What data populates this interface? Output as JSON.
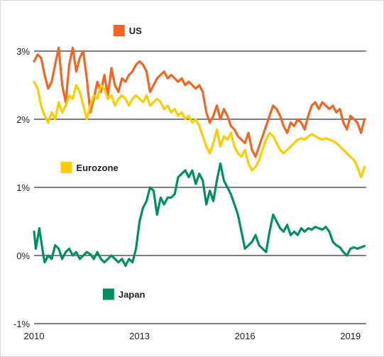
{
  "chart_data": {
    "type": "line",
    "xlim": [
      2010.0,
      2019.45
    ],
    "ylim": [
      -1,
      3
    ],
    "y_ticks": [
      {
        "value": 3,
        "label": "3%"
      },
      {
        "value": 2,
        "label": "2%"
      },
      {
        "value": 1,
        "label": "1%"
      },
      {
        "value": 0,
        "label": "0%"
      },
      {
        "value": -1,
        "label": "-1%"
      }
    ],
    "x_ticks": [
      {
        "value": 2010,
        "label": "2010"
      },
      {
        "value": 2013,
        "label": "2013"
      },
      {
        "value": 2016,
        "label": "2016"
      },
      {
        "value": 2019,
        "label": "2019"
      }
    ],
    "grid": "horizontal",
    "legend": "inline",
    "series": [
      {
        "name": "US",
        "color": "#f26522",
        "label_pos": {
          "x": 2012.7,
          "y": 3.25
        },
        "points": [
          [
            2010.0,
            2.85
          ],
          [
            2010.1,
            2.95
          ],
          [
            2010.2,
            2.9
          ],
          [
            2010.3,
            2.65
          ],
          [
            2010.4,
            2.45
          ],
          [
            2010.5,
            2.55
          ],
          [
            2010.6,
            2.8
          ],
          [
            2010.7,
            3.05
          ],
          [
            2010.8,
            2.5
          ],
          [
            2010.9,
            2.25
          ],
          [
            2011.0,
            2.8
          ],
          [
            2011.1,
            3.05
          ],
          [
            2011.2,
            2.7
          ],
          [
            2011.3,
            2.9
          ],
          [
            2011.4,
            3.0
          ],
          [
            2011.5,
            2.6
          ],
          [
            2011.6,
            2.1
          ],
          [
            2011.7,
            2.3
          ],
          [
            2011.8,
            2.55
          ],
          [
            2011.9,
            2.4
          ],
          [
            2012.0,
            2.65
          ],
          [
            2012.1,
            2.35
          ],
          [
            2012.2,
            2.75
          ],
          [
            2012.3,
            2.5
          ],
          [
            2012.4,
            2.4
          ],
          [
            2012.5,
            2.6
          ],
          [
            2012.6,
            2.55
          ],
          [
            2012.7,
            2.65
          ],
          [
            2012.8,
            2.7
          ],
          [
            2012.9,
            2.8
          ],
          [
            2013.0,
            2.85
          ],
          [
            2013.1,
            2.8
          ],
          [
            2013.2,
            2.7
          ],
          [
            2013.3,
            2.4
          ],
          [
            2013.4,
            2.5
          ],
          [
            2013.5,
            2.6
          ],
          [
            2013.6,
            2.65
          ],
          [
            2013.7,
            2.7
          ],
          [
            2013.8,
            2.6
          ],
          [
            2013.9,
            2.65
          ],
          [
            2014.0,
            2.6
          ],
          [
            2014.1,
            2.55
          ],
          [
            2014.2,
            2.6
          ],
          [
            2014.3,
            2.5
          ],
          [
            2014.4,
            2.55
          ],
          [
            2014.5,
            2.5
          ],
          [
            2014.6,
            2.45
          ],
          [
            2014.7,
            2.5
          ],
          [
            2014.8,
            2.4
          ],
          [
            2014.9,
            2.1
          ],
          [
            2015.0,
            1.95
          ],
          [
            2015.1,
            2.05
          ],
          [
            2015.2,
            2.2
          ],
          [
            2015.3,
            2.0
          ],
          [
            2015.4,
            2.15
          ],
          [
            2015.5,
            2.05
          ],
          [
            2015.6,
            1.9
          ],
          [
            2015.7,
            1.85
          ],
          [
            2015.8,
            1.75
          ],
          [
            2015.9,
            1.7
          ],
          [
            2016.0,
            1.65
          ],
          [
            2016.1,
            1.8
          ],
          [
            2016.2,
            1.55
          ],
          [
            2016.3,
            1.45
          ],
          [
            2016.4,
            1.6
          ],
          [
            2016.5,
            1.75
          ],
          [
            2016.6,
            1.9
          ],
          [
            2016.7,
            2.05
          ],
          [
            2016.8,
            2.2
          ],
          [
            2016.9,
            2.15
          ],
          [
            2017.0,
            2.05
          ],
          [
            2017.1,
            1.9
          ],
          [
            2017.2,
            1.8
          ],
          [
            2017.3,
            1.95
          ],
          [
            2017.4,
            1.9
          ],
          [
            2017.5,
            2.0
          ],
          [
            2017.6,
            1.95
          ],
          [
            2017.7,
            1.85
          ],
          [
            2017.8,
            2.05
          ],
          [
            2017.9,
            2.2
          ],
          [
            2018.0,
            2.25
          ],
          [
            2018.1,
            2.15
          ],
          [
            2018.2,
            2.25
          ],
          [
            2018.3,
            2.2
          ],
          [
            2018.4,
            2.15
          ],
          [
            2018.5,
            2.2
          ],
          [
            2018.6,
            2.1
          ],
          [
            2018.7,
            2.15
          ],
          [
            2018.8,
            1.95
          ],
          [
            2018.9,
            1.85
          ],
          [
            2019.0,
            2.05
          ],
          [
            2019.1,
            2.0
          ],
          [
            2019.2,
            1.95
          ],
          [
            2019.3,
            1.8
          ],
          [
            2019.4,
            2.0
          ]
        ]
      },
      {
        "name": "Eurozone",
        "color": "#ffcc00",
        "label_pos": {
          "x": 2011.2,
          "y": 1.24
        },
        "points": [
          [
            2010.0,
            2.55
          ],
          [
            2010.1,
            2.45
          ],
          [
            2010.2,
            2.2
          ],
          [
            2010.3,
            2.05
          ],
          [
            2010.4,
            1.95
          ],
          [
            2010.5,
            2.1
          ],
          [
            2010.6,
            2.0
          ],
          [
            2010.7,
            2.25
          ],
          [
            2010.8,
            2.1
          ],
          [
            2010.9,
            2.2
          ],
          [
            2011.0,
            2.35
          ],
          [
            2011.1,
            2.3
          ],
          [
            2011.2,
            2.5
          ],
          [
            2011.3,
            2.4
          ],
          [
            2011.4,
            2.2
          ],
          [
            2011.5,
            2.0
          ],
          [
            2011.6,
            2.2
          ],
          [
            2011.7,
            2.35
          ],
          [
            2011.8,
            2.3
          ],
          [
            2011.9,
            2.5
          ],
          [
            2012.0,
            2.45
          ],
          [
            2012.1,
            2.3
          ],
          [
            2012.2,
            2.35
          ],
          [
            2012.3,
            2.2
          ],
          [
            2012.4,
            2.3
          ],
          [
            2012.5,
            2.35
          ],
          [
            2012.6,
            2.3
          ],
          [
            2012.7,
            2.2
          ],
          [
            2012.8,
            2.3
          ],
          [
            2012.9,
            2.35
          ],
          [
            2013.0,
            2.3
          ],
          [
            2013.1,
            2.25
          ],
          [
            2013.2,
            2.35
          ],
          [
            2013.3,
            2.2
          ],
          [
            2013.4,
            2.25
          ],
          [
            2013.5,
            2.3
          ],
          [
            2013.6,
            2.25
          ],
          [
            2013.7,
            2.15
          ],
          [
            2013.8,
            2.2
          ],
          [
            2013.9,
            2.1
          ],
          [
            2014.0,
            2.15
          ],
          [
            2014.1,
            2.05
          ],
          [
            2014.2,
            2.1
          ],
          [
            2014.3,
            2.0
          ],
          [
            2014.4,
            2.05
          ],
          [
            2014.5,
            1.95
          ],
          [
            2014.6,
            2.0
          ],
          [
            2014.7,
            1.9
          ],
          [
            2014.8,
            1.75
          ],
          [
            2014.9,
            1.6
          ],
          [
            2015.0,
            1.5
          ],
          [
            2015.1,
            1.65
          ],
          [
            2015.2,
            1.85
          ],
          [
            2015.3,
            1.6
          ],
          [
            2015.4,
            1.75
          ],
          [
            2015.5,
            1.7
          ],
          [
            2015.6,
            1.8
          ],
          [
            2015.7,
            1.6
          ],
          [
            2015.8,
            1.5
          ],
          [
            2015.9,
            1.45
          ],
          [
            2016.0,
            1.55
          ],
          [
            2016.1,
            1.35
          ],
          [
            2016.2,
            1.25
          ],
          [
            2016.3,
            1.3
          ],
          [
            2016.4,
            1.4
          ],
          [
            2016.5,
            1.55
          ],
          [
            2016.6,
            1.7
          ],
          [
            2016.7,
            1.8
          ],
          [
            2016.8,
            1.75
          ],
          [
            2016.9,
            1.65
          ],
          [
            2017.0,
            1.55
          ],
          [
            2017.1,
            1.5
          ],
          [
            2017.2,
            1.55
          ],
          [
            2017.3,
            1.6
          ],
          [
            2017.4,
            1.65
          ],
          [
            2017.5,
            1.7
          ],
          [
            2017.6,
            1.72
          ],
          [
            2017.7,
            1.7
          ],
          [
            2017.8,
            1.75
          ],
          [
            2017.9,
            1.78
          ],
          [
            2018.0,
            1.75
          ],
          [
            2018.1,
            1.72
          ],
          [
            2018.2,
            1.7
          ],
          [
            2018.3,
            1.72
          ],
          [
            2018.4,
            1.7
          ],
          [
            2018.5,
            1.68
          ],
          [
            2018.6,
            1.65
          ],
          [
            2018.7,
            1.6
          ],
          [
            2018.8,
            1.55
          ],
          [
            2018.9,
            1.5
          ],
          [
            2019.0,
            1.45
          ],
          [
            2019.1,
            1.4
          ],
          [
            2019.2,
            1.3
          ],
          [
            2019.3,
            1.15
          ],
          [
            2019.4,
            1.3
          ]
        ]
      },
      {
        "name": "Japan",
        "color": "#009060",
        "label_pos": {
          "x": 2012.4,
          "y": -0.62
        },
        "points": [
          [
            2010.0,
            0.35
          ],
          [
            2010.05,
            0.1
          ],
          [
            2010.15,
            0.4
          ],
          [
            2010.25,
            0.05
          ],
          [
            2010.3,
            -0.1
          ],
          [
            2010.4,
            0.0
          ],
          [
            2010.5,
            -0.05
          ],
          [
            2010.6,
            0.15
          ],
          [
            2010.7,
            0.1
          ],
          [
            2010.8,
            -0.05
          ],
          [
            2010.9,
            0.05
          ],
          [
            2011.0,
            0.1
          ],
          [
            2011.1,
            0.0
          ],
          [
            2011.2,
            0.05
          ],
          [
            2011.3,
            -0.05
          ],
          [
            2011.4,
            0.0
          ],
          [
            2011.5,
            0.05
          ],
          [
            2011.6,
            0.02
          ],
          [
            2011.7,
            -0.05
          ],
          [
            2011.8,
            0.05
          ],
          [
            2011.9,
            -0.05
          ],
          [
            2012.0,
            -0.1
          ],
          [
            2012.1,
            -0.05
          ],
          [
            2012.2,
            0.0
          ],
          [
            2012.3,
            -0.05
          ],
          [
            2012.4,
            -0.1
          ],
          [
            2012.5,
            -0.05
          ],
          [
            2012.6,
            -0.15
          ],
          [
            2012.7,
            -0.05
          ],
          [
            2012.8,
            -0.1
          ],
          [
            2012.9,
            0.1
          ],
          [
            2013.0,
            0.5
          ],
          [
            2013.1,
            0.7
          ],
          [
            2013.2,
            0.8
          ],
          [
            2013.3,
            1.0
          ],
          [
            2013.4,
            0.95
          ],
          [
            2013.5,
            0.6
          ],
          [
            2013.6,
            0.85
          ],
          [
            2013.7,
            0.75
          ],
          [
            2013.8,
            0.85
          ],
          [
            2013.9,
            0.85
          ],
          [
            2014.0,
            0.9
          ],
          [
            2014.1,
            1.15
          ],
          [
            2014.2,
            1.2
          ],
          [
            2014.3,
            1.25
          ],
          [
            2014.4,
            1.15
          ],
          [
            2014.5,
            1.25
          ],
          [
            2014.6,
            1.05
          ],
          [
            2014.7,
            1.2
          ],
          [
            2014.8,
            1.1
          ],
          [
            2014.9,
            0.75
          ],
          [
            2015.0,
            0.95
          ],
          [
            2015.1,
            0.8
          ],
          [
            2015.2,
            1.1
          ],
          [
            2015.3,
            1.35
          ],
          [
            2015.4,
            1.1
          ],
          [
            2015.5,
            1.0
          ],
          [
            2015.6,
            0.9
          ],
          [
            2015.7,
            0.75
          ],
          [
            2015.8,
            0.6
          ],
          [
            2015.9,
            0.35
          ],
          [
            2016.0,
            0.1
          ],
          [
            2016.1,
            0.15
          ],
          [
            2016.2,
            0.2
          ],
          [
            2016.3,
            0.3
          ],
          [
            2016.4,
            0.15
          ],
          [
            2016.5,
            0.1
          ],
          [
            2016.6,
            0.05
          ],
          [
            2016.7,
            0.35
          ],
          [
            2016.8,
            0.6
          ],
          [
            2016.9,
            0.5
          ],
          [
            2017.0,
            0.4
          ],
          [
            2017.1,
            0.35
          ],
          [
            2017.2,
            0.45
          ],
          [
            2017.3,
            0.3
          ],
          [
            2017.4,
            0.35
          ],
          [
            2017.5,
            0.3
          ],
          [
            2017.6,
            0.4
          ],
          [
            2017.7,
            0.35
          ],
          [
            2017.8,
            0.4
          ],
          [
            2017.9,
            0.38
          ],
          [
            2018.0,
            0.42
          ],
          [
            2018.1,
            0.4
          ],
          [
            2018.2,
            0.38
          ],
          [
            2018.3,
            0.42
          ],
          [
            2018.4,
            0.35
          ],
          [
            2018.5,
            0.2
          ],
          [
            2018.6,
            0.15
          ],
          [
            2018.7,
            0.12
          ],
          [
            2018.8,
            0.05
          ],
          [
            2018.9,
            0.0
          ],
          [
            2019.0,
            0.1
          ],
          [
            2019.1,
            0.12
          ],
          [
            2019.2,
            0.1
          ],
          [
            2019.3,
            0.12
          ],
          [
            2019.4,
            0.14
          ]
        ]
      }
    ]
  }
}
